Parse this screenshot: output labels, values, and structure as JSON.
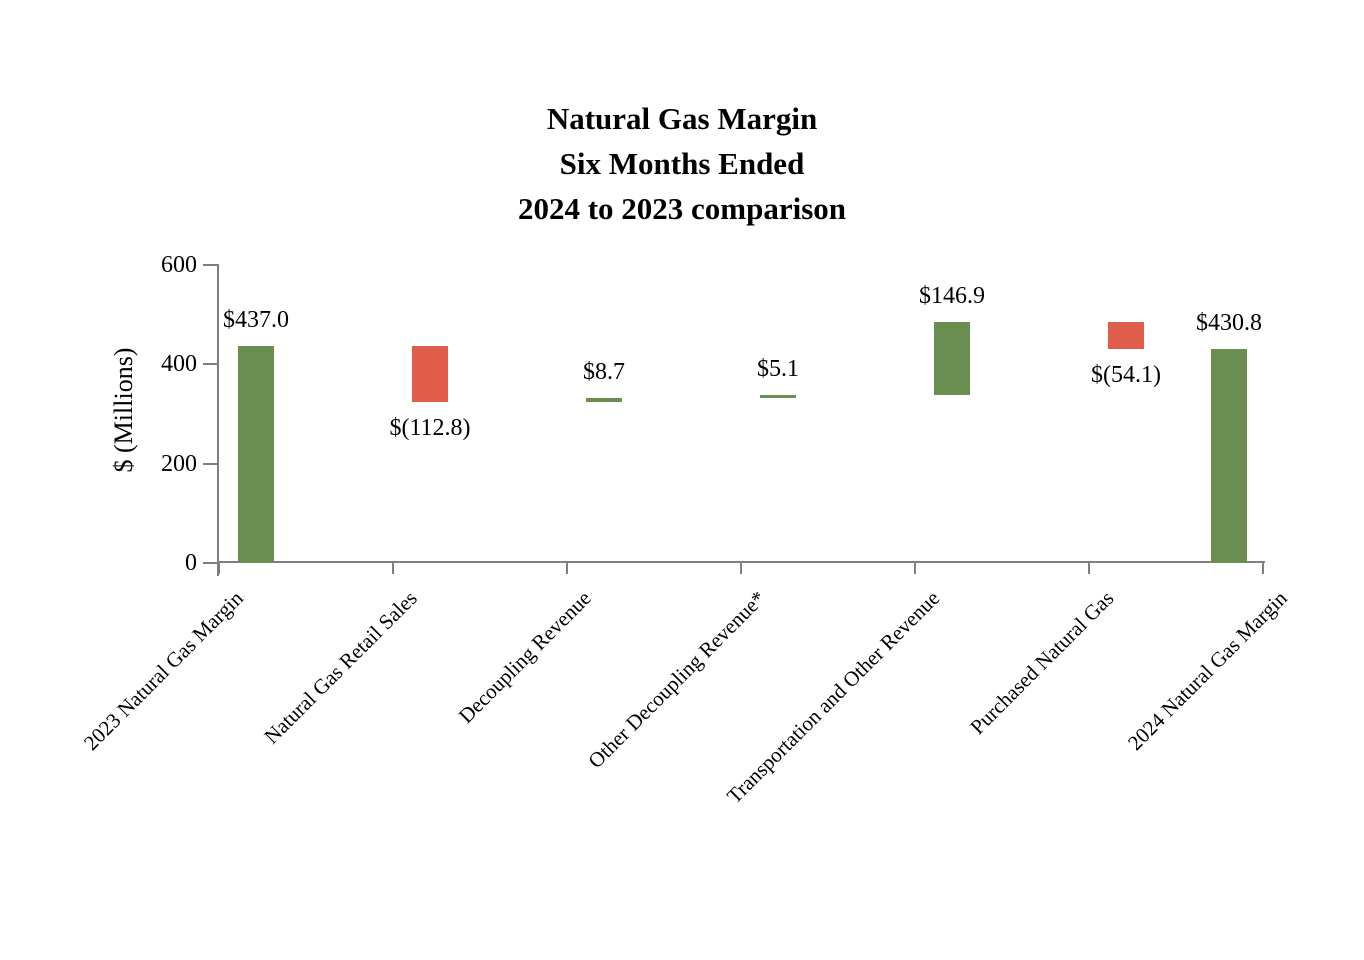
{
  "chart_data": {
    "type": "bar",
    "subtype": "waterfall",
    "title_lines": [
      "Natural Gas Margin",
      "Six Months Ended",
      "2024 to 2023 comparison"
    ],
    "ylabel": "$ (Millions)",
    "ylim": [
      0,
      600
    ],
    "yticks": [
      0,
      200,
      400,
      600
    ],
    "ytick_labels": [
      "0",
      "200",
      "400",
      "600"
    ],
    "grid": "off",
    "legend": "none",
    "categories": [
      "2023 Natural Gas Margin",
      "Natural Gas Retail Sales",
      "Decoupling Revenue",
      "Other Decoupling Revenue*",
      "Transportation and Other Revenue",
      "Purchased Natural Gas",
      "2024 Natural Gas Margin"
    ],
    "bars": [
      {
        "category": "2023 Natural Gas Margin",
        "value": 437.0,
        "display": "$437.0",
        "kind": "total",
        "value_label_position": "above"
      },
      {
        "category": "Natural Gas Retail Sales",
        "value": -112.8,
        "display": "$(112.8)",
        "kind": "decrease",
        "value_label_position": "below"
      },
      {
        "category": "Decoupling Revenue",
        "value": 8.7,
        "display": "$8.7",
        "kind": "increase",
        "value_label_position": "above"
      },
      {
        "category": "Other Decoupling Revenue*",
        "value": 5.1,
        "display": "$5.1",
        "kind": "increase",
        "value_label_position": "above"
      },
      {
        "category": "Transportation and Other Revenue",
        "value": 146.9,
        "display": "$146.9",
        "kind": "increase",
        "value_label_position": "above"
      },
      {
        "category": "Purchased Natural Gas",
        "value": -54.1,
        "display": "$(54.1)",
        "kind": "decrease",
        "value_label_position": "below"
      },
      {
        "category": "2024 Natural Gas Margin",
        "value": 430.8,
        "display": "$430.8",
        "kind": "total",
        "value_label_position": "above"
      }
    ],
    "colors": {
      "increase": "#6A8E50",
      "decrease": "#E05D4B",
      "axis": "#7F7F7F",
      "text": "#000000",
      "background": "#FFFFFF"
    }
  }
}
